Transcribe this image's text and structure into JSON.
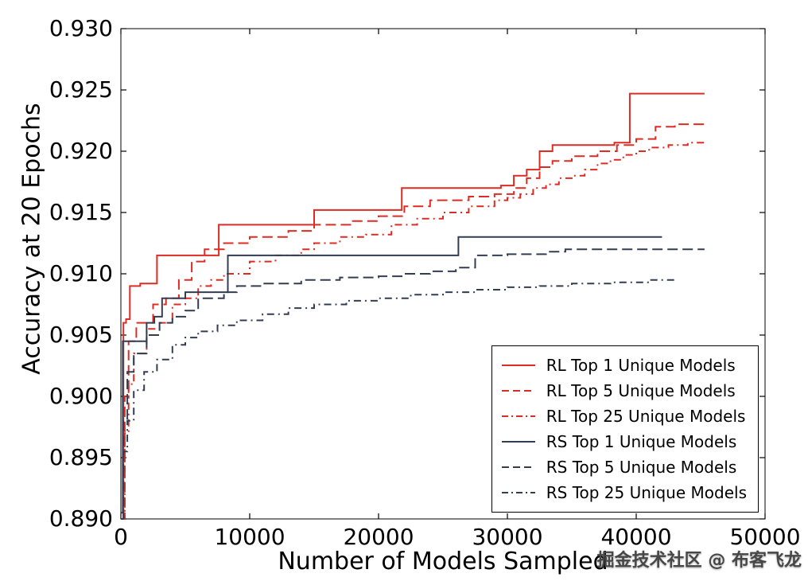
{
  "chart_data": {
    "type": "line",
    "title": "",
    "xlabel": "Number of Models Sampled",
    "ylabel": "Accuracy at 20 Epochs",
    "xlim": [
      0,
      50000
    ],
    "ylim": [
      0.89,
      0.93
    ],
    "x_ticks": [
      0,
      10000,
      20000,
      30000,
      40000,
      50000
    ],
    "x_tick_labels": [
      "0",
      "10000",
      "20000",
      "30000",
      "40000",
      "50000"
    ],
    "y_ticks": [
      0.89,
      0.895,
      0.9,
      0.905,
      0.91,
      0.915,
      0.92,
      0.925,
      0.93
    ],
    "y_tick_labels": [
      "0.890",
      "0.895",
      "0.900",
      "0.905",
      "0.910",
      "0.915",
      "0.920",
      "0.925",
      "0.930"
    ],
    "grid": false,
    "legend_position": "lower right",
    "step_mode": "post",
    "colors": {
      "rl": "#dd2c23",
      "rs": "#333d52"
    },
    "series": [
      {
        "name": "RL Top 1 Unique Models",
        "color": "#dd2c23",
        "style": "solid",
        "points": [
          [
            0,
            0.8905
          ],
          [
            200,
            0.906
          ],
          [
            400,
            0.9063
          ],
          [
            700,
            0.909
          ],
          [
            1500,
            0.9092
          ],
          [
            2800,
            0.9115
          ],
          [
            7600,
            0.914
          ],
          [
            15000,
            0.9152
          ],
          [
            21800,
            0.917
          ],
          [
            29500,
            0.9172
          ],
          [
            30500,
            0.918
          ],
          [
            31500,
            0.9185
          ],
          [
            32500,
            0.92
          ],
          [
            33500,
            0.9205
          ],
          [
            38300,
            0.9207
          ],
          [
            39500,
            0.9247
          ],
          [
            45300,
            0.9247
          ]
        ]
      },
      {
        "name": "RL Top 5 Unique Models",
        "color": "#dd2c23",
        "style": "dashed",
        "points": [
          [
            0,
            0.89
          ],
          [
            300,
            0.9
          ],
          [
            600,
            0.9045
          ],
          [
            1200,
            0.906
          ],
          [
            2500,
            0.9075
          ],
          [
            3500,
            0.908
          ],
          [
            4500,
            0.9095
          ],
          [
            5500,
            0.911
          ],
          [
            6500,
            0.912
          ],
          [
            8000,
            0.9125
          ],
          [
            10000,
            0.913
          ],
          [
            13000,
            0.9135
          ],
          [
            15000,
            0.914
          ],
          [
            18000,
            0.9143
          ],
          [
            20000,
            0.9147
          ],
          [
            22000,
            0.9155
          ],
          [
            24000,
            0.916
          ],
          [
            27000,
            0.9163
          ],
          [
            29000,
            0.9165
          ],
          [
            30500,
            0.917
          ],
          [
            31500,
            0.9178
          ],
          [
            32500,
            0.9187
          ],
          [
            33500,
            0.9192
          ],
          [
            35000,
            0.9196
          ],
          [
            37000,
            0.92
          ],
          [
            38500,
            0.9205
          ],
          [
            40000,
            0.921
          ],
          [
            41500,
            0.922
          ],
          [
            43000,
            0.9222
          ],
          [
            45300,
            0.9222
          ]
        ]
      },
      {
        "name": "RL Top 25 Unique Models",
        "color": "#dd2c23",
        "style": "dashdot",
        "points": [
          [
            0,
            0.89
          ],
          [
            300,
            0.897
          ],
          [
            600,
            0.901
          ],
          [
            1000,
            0.9035
          ],
          [
            2000,
            0.9055
          ],
          [
            3000,
            0.906
          ],
          [
            4000,
            0.9075
          ],
          [
            5000,
            0.908
          ],
          [
            6000,
            0.909
          ],
          [
            7000,
            0.9095
          ],
          [
            8000,
            0.91
          ],
          [
            10000,
            0.911
          ],
          [
            12000,
            0.9115
          ],
          [
            14000,
            0.912
          ],
          [
            15000,
            0.9125
          ],
          [
            17000,
            0.913
          ],
          [
            19000,
            0.9132
          ],
          [
            21000,
            0.914
          ],
          [
            23000,
            0.9145
          ],
          [
            25000,
            0.915
          ],
          [
            27000,
            0.9155
          ],
          [
            29000,
            0.916
          ],
          [
            30000,
            0.9162
          ],
          [
            31000,
            0.9165
          ],
          [
            32000,
            0.917
          ],
          [
            33000,
            0.9173
          ],
          [
            34000,
            0.9178
          ],
          [
            35000,
            0.918
          ],
          [
            36000,
            0.9185
          ],
          [
            37000,
            0.919
          ],
          [
            38000,
            0.9193
          ],
          [
            39000,
            0.9197
          ],
          [
            40000,
            0.92
          ],
          [
            41000,
            0.9203
          ],
          [
            42500,
            0.9205
          ],
          [
            44000,
            0.9207
          ],
          [
            45300,
            0.9208
          ]
        ]
      },
      {
        "name": "RS Top 1 Unique Models",
        "color": "#333d52",
        "style": "solid",
        "points": [
          [
            0,
            0.8905
          ],
          [
            150,
            0.9045
          ],
          [
            2000,
            0.906
          ],
          [
            2600,
            0.9065
          ],
          [
            3200,
            0.908
          ],
          [
            5000,
            0.9085
          ],
          [
            8300,
            0.9115
          ],
          [
            26200,
            0.913
          ],
          [
            42000,
            0.913
          ]
        ]
      },
      {
        "name": "RS Top 5 Unique Models",
        "color": "#333d52",
        "style": "dashed",
        "points": [
          [
            0,
            0.89
          ],
          [
            200,
            0.898
          ],
          [
            500,
            0.902
          ],
          [
            1000,
            0.9035
          ],
          [
            2000,
            0.905
          ],
          [
            3000,
            0.906
          ],
          [
            4000,
            0.9065
          ],
          [
            5000,
            0.907
          ],
          [
            6000,
            0.908
          ],
          [
            8000,
            0.9085
          ],
          [
            9000,
            0.909
          ],
          [
            11000,
            0.9092
          ],
          [
            14000,
            0.9095
          ],
          [
            17000,
            0.9097
          ],
          [
            20000,
            0.9098
          ],
          [
            22000,
            0.91
          ],
          [
            24000,
            0.9102
          ],
          [
            26000,
            0.9105
          ],
          [
            27500,
            0.9115
          ],
          [
            30000,
            0.9116
          ],
          [
            33000,
            0.9118
          ],
          [
            34500,
            0.912
          ],
          [
            45300,
            0.912
          ]
        ]
      },
      {
        "name": "RS Top 25 Unique Models",
        "color": "#333d52",
        "style": "dashdot",
        "points": [
          [
            0,
            0.89
          ],
          [
            200,
            0.8955
          ],
          [
            500,
            0.898
          ],
          [
            1000,
            0.9005
          ],
          [
            1800,
            0.902
          ],
          [
            2800,
            0.903
          ],
          [
            4000,
            0.9042
          ],
          [
            5000,
            0.9048
          ],
          [
            6000,
            0.9053
          ],
          [
            7500,
            0.9058
          ],
          [
            9000,
            0.9062
          ],
          [
            11000,
            0.9067
          ],
          [
            13000,
            0.9072
          ],
          [
            15000,
            0.9075
          ],
          [
            17500,
            0.9078
          ],
          [
            20000,
            0.908
          ],
          [
            22500,
            0.9083
          ],
          [
            25000,
            0.9085
          ],
          [
            27500,
            0.9087
          ],
          [
            30000,
            0.9089
          ],
          [
            32500,
            0.909
          ],
          [
            35000,
            0.9092
          ],
          [
            38000,
            0.9093
          ],
          [
            41000,
            0.9095
          ],
          [
            43200,
            0.9095
          ]
        ]
      }
    ]
  },
  "watermark": {
    "text": "掘金技术社区 @ 布客飞龙"
  }
}
